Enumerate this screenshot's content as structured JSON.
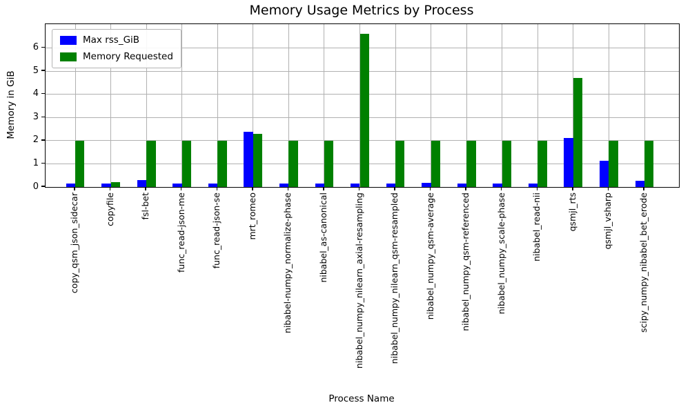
{
  "chart_data": {
    "type": "bar",
    "title": "Memory Usage Metrics by Process",
    "xlabel": "Process Name",
    "ylabel": "Memory in GiB",
    "categories": [
      "copy_qsm_json_sidecar",
      "copyfile",
      "fsl-bet",
      "func_read-json-me",
      "func_read-json-se",
      "mrt_romeo",
      "nibabel-numpy_normalize-phase",
      "nibabel_as-canonical",
      "nibabel_numpy_nilearn_axial-resampling",
      "nibabel_numpy_nilearn_qsm-resampled",
      "nibabel_numpy_qsm-average",
      "nibabel_numpy_qsm-referenced",
      "nibabel_numpy_scale-phase",
      "nibabel_read-nii",
      "qsmjl_rts",
      "qsmjl_vsharp",
      "scipy_numpy_nibabel_bet_erode"
    ],
    "series": [
      {
        "name": "Max rss_GiB",
        "color": "#0000ff",
        "values": [
          0.15,
          0.15,
          0.29,
          0.15,
          0.15,
          2.38,
          0.14,
          0.14,
          0.15,
          0.15,
          0.18,
          0.14,
          0.15,
          0.14,
          2.11,
          1.13,
          0.26
        ]
      },
      {
        "name": "Memory Requested",
        "color": "#008000",
        "values": [
          2.0,
          0.2,
          2.0,
          2.0,
          2.0,
          2.28,
          2.0,
          2.0,
          6.6,
          2.0,
          2.0,
          2.0,
          2.0,
          2.0,
          4.7,
          2.0,
          2.0
        ]
      }
    ],
    "yticks": [
      0,
      1,
      2,
      3,
      4,
      5,
      6
    ],
    "ylim": [
      0,
      7.03
    ],
    "grid": true,
    "legend_position": "upper left",
    "grid_color": "#b0b0b0"
  }
}
